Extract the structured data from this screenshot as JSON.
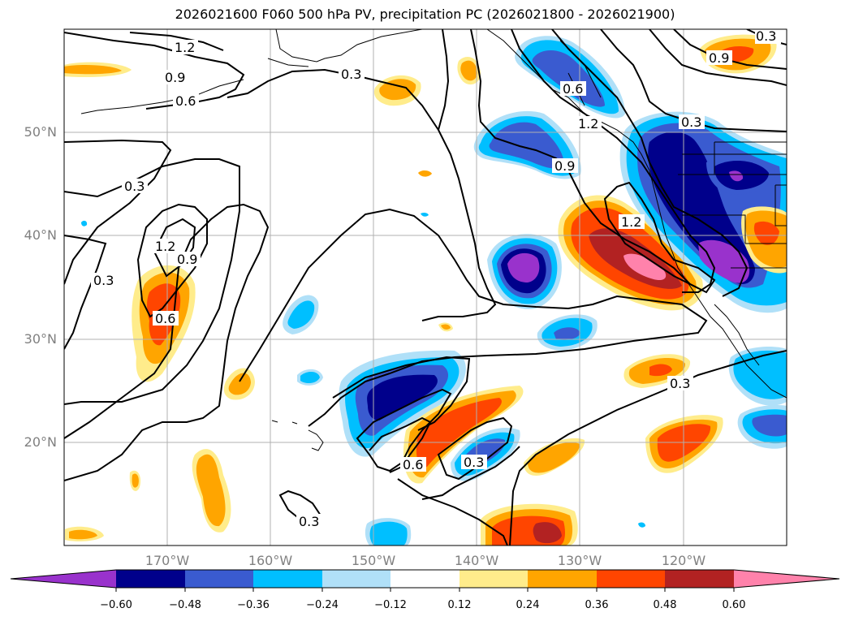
{
  "title": "2026021600 F060 500 hPa PV, precipitation PC (2026021800 - 2026021900)",
  "lat_labels": [
    "50°N",
    "40°N",
    "30°N",
    "20°N"
  ],
  "lon_labels": [
    "170°W",
    "160°W",
    "150°W",
    "140°W",
    "130°W",
    "120°W"
  ],
  "colorbar": {
    "tick_labels": [
      "−0.60",
      "−0.48",
      "−0.36",
      "−0.24",
      "−0.12",
      "0.12",
      "0.24",
      "0.36",
      "0.48",
      "0.60"
    ],
    "colors": [
      "#9932cc",
      "#00008b",
      "#3a5bd0",
      "#00bfff",
      "#b0e0f8",
      "#ffffff",
      "#ffec8b",
      "#ffa500",
      "#ff4500",
      "#b22222",
      "#ff82ab"
    ]
  },
  "contour_labels": [
    "1.2",
    "0.9",
    "0.6",
    "0.3",
    "0.3",
    "0.3",
    "1.2",
    "0.9",
    "0.3",
    "0.6",
    "1.2",
    "0.9",
    "0.3",
    "1.2",
    "0.3",
    "0.6",
    "0.3",
    "0.3",
    "0.6",
    "0.9"
  ]
}
